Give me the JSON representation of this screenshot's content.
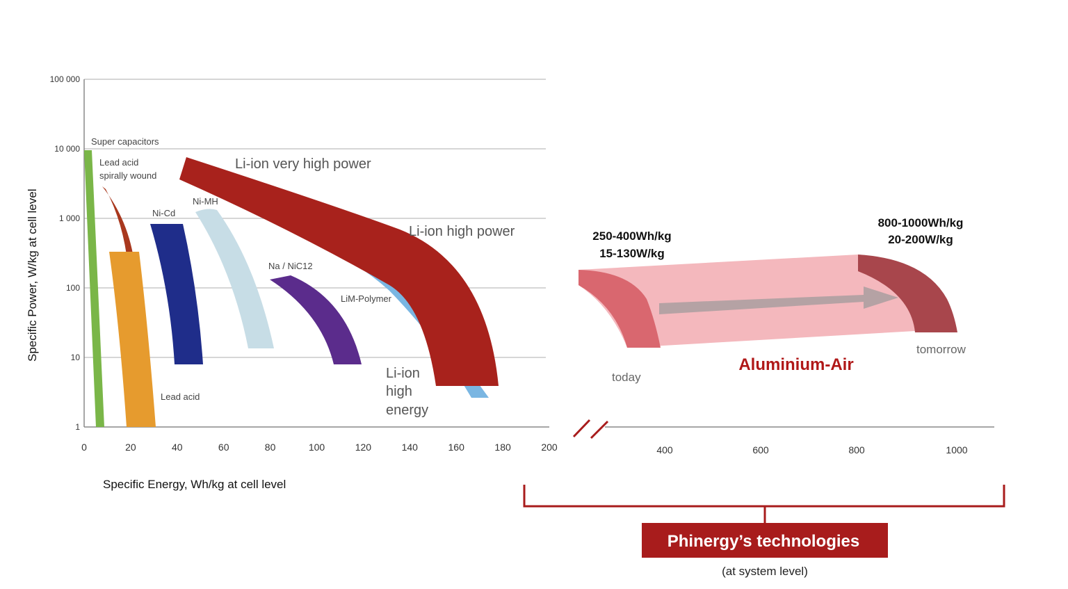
{
  "chart_data": {
    "type": "area",
    "xlabel": "Specific Energy, Wh/kg at cell level",
    "ylabel": "Specific Power, W/kg at cell level",
    "y_scale": "log",
    "ylim": [
      1,
      100000
    ],
    "y_ticks": [
      "100 000",
      "10 000",
      "1 000",
      "100",
      "10",
      "1"
    ],
    "y_tick_values": [
      100000,
      10000,
      1000,
      100,
      10,
      1
    ],
    "x_ticks_left": [
      "0",
      "20",
      "40",
      "60",
      "80",
      "100",
      "120",
      "140",
      "160",
      "180",
      "200"
    ],
    "x_ticks_left_values": [
      0,
      20,
      40,
      60,
      80,
      100,
      120,
      140,
      160,
      180,
      200
    ],
    "x_ticks_right": [
      "400",
      "600",
      "800",
      "1000"
    ],
    "x_ticks_right_values": [
      400,
      600,
      800,
      1000
    ],
    "axis_break": true,
    "grid": true,
    "series": [
      {
        "name": "Super capacitors",
        "color": "#7ab648",
        "approx_energy_whkg": [
          0,
          8
        ],
        "approx_power_wkg": [
          1,
          10000
        ]
      },
      {
        "name": "Lead acid spirally wound",
        "color": "#a9381e",
        "approx_energy_whkg": [
          8,
          22
        ],
        "approx_power_wkg": [
          100,
          3000
        ]
      },
      {
        "name": "Lead acid",
        "color": "#e69b2e",
        "approx_energy_whkg": [
          11,
          31
        ],
        "approx_power_wkg": [
          1,
          350
        ]
      },
      {
        "name": "Ni-Cd",
        "color": "#1f2d8a",
        "approx_energy_whkg": [
          39,
          51
        ],
        "approx_power_wkg": [
          8,
          1000
        ]
      },
      {
        "name": "Ni-MH",
        "color": "#c7dde6",
        "approx_energy_whkg": [
          48,
          82
        ],
        "approx_power_wkg": [
          15,
          1500
        ]
      },
      {
        "name": "Na / NiC12",
        "color": "#5b2c8c",
        "approx_energy_whkg": [
          80,
          119
        ],
        "approx_power_wkg": [
          8,
          170
        ]
      },
      {
        "name": "LiM-Polymer",
        "color": "#7ab6e2",
        "approx_energy_whkg": [
          107,
          175
        ],
        "approx_power_wkg": [
          2.5,
          400
        ]
      },
      {
        "name": "Li-ion very high power",
        "color": "#a8221c",
        "approx_energy_whkg": [
          42,
          178
        ],
        "approx_power_wkg": [
          4,
          8000
        ]
      }
    ],
    "annotations": {
      "region_labels": [
        "Super capacitors",
        "Lead acid",
        "spirally wound",
        "Ni-Cd",
        "Ni-MH",
        "Na / NiC12",
        "LiM-Polymer",
        "Lead acid"
      ],
      "li_ion_labels": [
        "Li-ion very high power",
        "Li-ion high power"
      ],
      "li_ion_energy_lines": [
        "Li-ion",
        "high",
        "energy"
      ],
      "today_values": [
        "250-400Wh/kg",
        "15-130W/kg"
      ],
      "tomorrow_values": [
        "800-1000Wh/kg",
        "20-200W/kg"
      ],
      "today_label": "today",
      "tomorrow_label": "tomorrow",
      "technology_label": "Aluminium-Air",
      "bracket_title": "Phinergy’s technologies",
      "bracket_subtitle": "(at system level)"
    },
    "aluminium_air": {
      "today": {
        "energy_whkg": [
          250,
          400
        ],
        "power_wkg": [
          15,
          130
        ]
      },
      "tomorrow": {
        "energy_whkg": [
          800,
          1000
        ],
        "power_wkg": [
          20,
          200
        ]
      }
    }
  },
  "colors": {
    "aluminium_band": "#f4b8bd",
    "today_shape": "#d9676f",
    "tomorrow_shape": "#a8464c",
    "arrow": "#b5a2a4",
    "arrow_head": "#d07a84",
    "bracket": "#a81c1c",
    "grid": "#c8c8c8"
  }
}
